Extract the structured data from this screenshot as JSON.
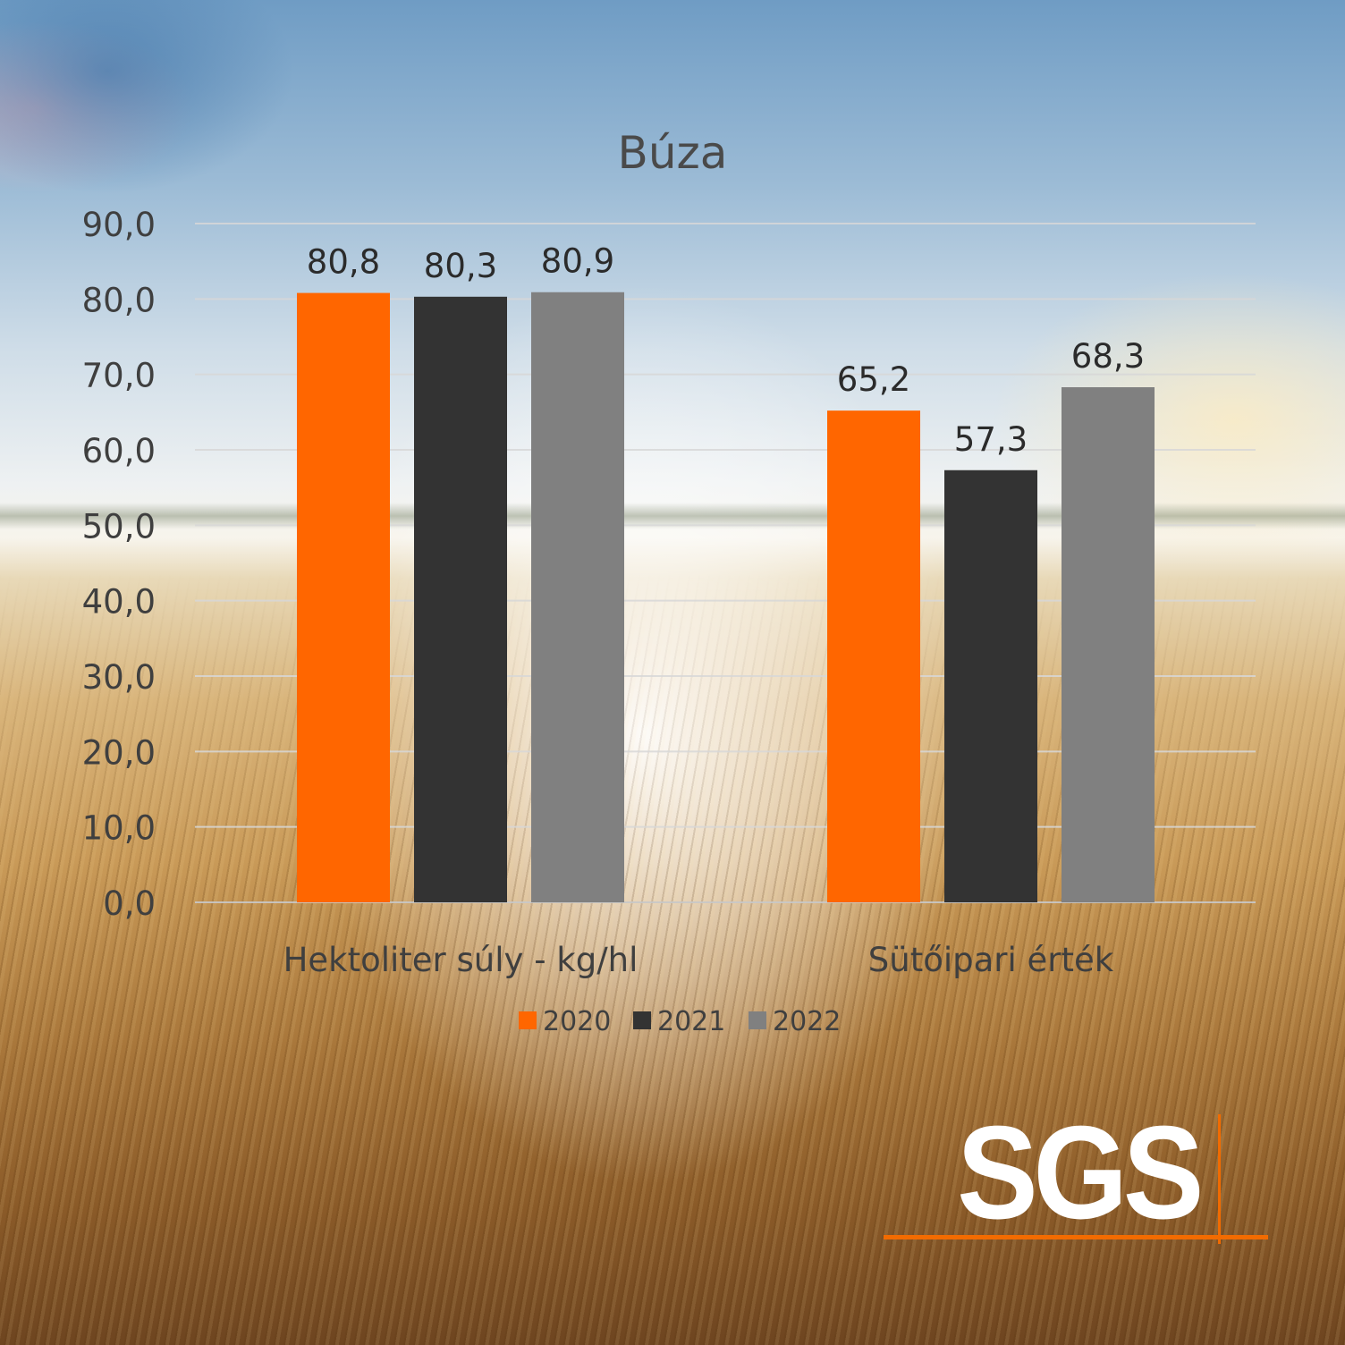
{
  "chart_data": {
    "type": "bar",
    "title": "Búza",
    "categories": [
      "Hektoliter súly  - kg/hl",
      "Sütőipari érték"
    ],
    "series": [
      {
        "name": "2020",
        "values": [
          80.8,
          65.2
        ],
        "labels": [
          "80,8",
          "65,2"
        ],
        "color": "#ff6600"
      },
      {
        "name": "2021",
        "values": [
          80.3,
          57.3
        ],
        "labels": [
          "80,3",
          "57,3"
        ],
        "color": "#333333"
      },
      {
        "name": "2022",
        "values": [
          80.9,
          68.3
        ],
        "labels": [
          "80,9",
          "68,3"
        ],
        "color": "#808080"
      }
    ],
    "ylim": [
      0,
      90
    ],
    "yticks": [
      "0,0",
      "10,0",
      "20,0",
      "30,0",
      "40,0",
      "50,0",
      "60,0",
      "70,0",
      "80,0",
      "90,0"
    ],
    "grid": true,
    "legend_position": "bottom"
  },
  "logo": {
    "text": "SGS",
    "accent": "#f26b00"
  }
}
